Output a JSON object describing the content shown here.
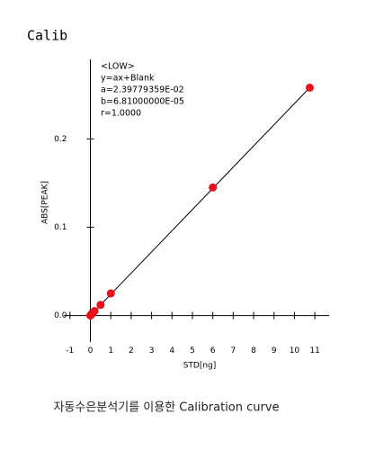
{
  "chart_data": {
    "type": "scatter",
    "title": "Calib",
    "annotations": [
      "<LOW>",
      "y=ax+Blank",
      "a=2.39779359E-02",
      "b=6.81000000E-05",
      "r=1.0000"
    ],
    "x_label": "STD[ng]",
    "y_label": "ABS[PEAK]",
    "caption": "자동수은분석기를 이용한 Calibration curve",
    "x": [
      0,
      0.05,
      0.1,
      0.2,
      0.5,
      1,
      6,
      10.75
    ],
    "values": [
      0,
      0.001,
      0.003,
      0.005,
      0.012,
      0.025,
      0.145,
      0.258
    ],
    "color": "#e8101a",
    "line_color": "#000000",
    "xlim": [
      -1.3,
      11.7
    ],
    "xticks": [
      -1,
      0,
      1,
      2,
      3,
      4,
      5,
      6,
      7,
      8,
      9,
      10,
      11
    ],
    "ylim": [
      -0.03,
      0.29
    ],
    "yticks": [
      {
        "value": 0,
        "label": "0.0"
      },
      0.1,
      0.2
    ]
  }
}
